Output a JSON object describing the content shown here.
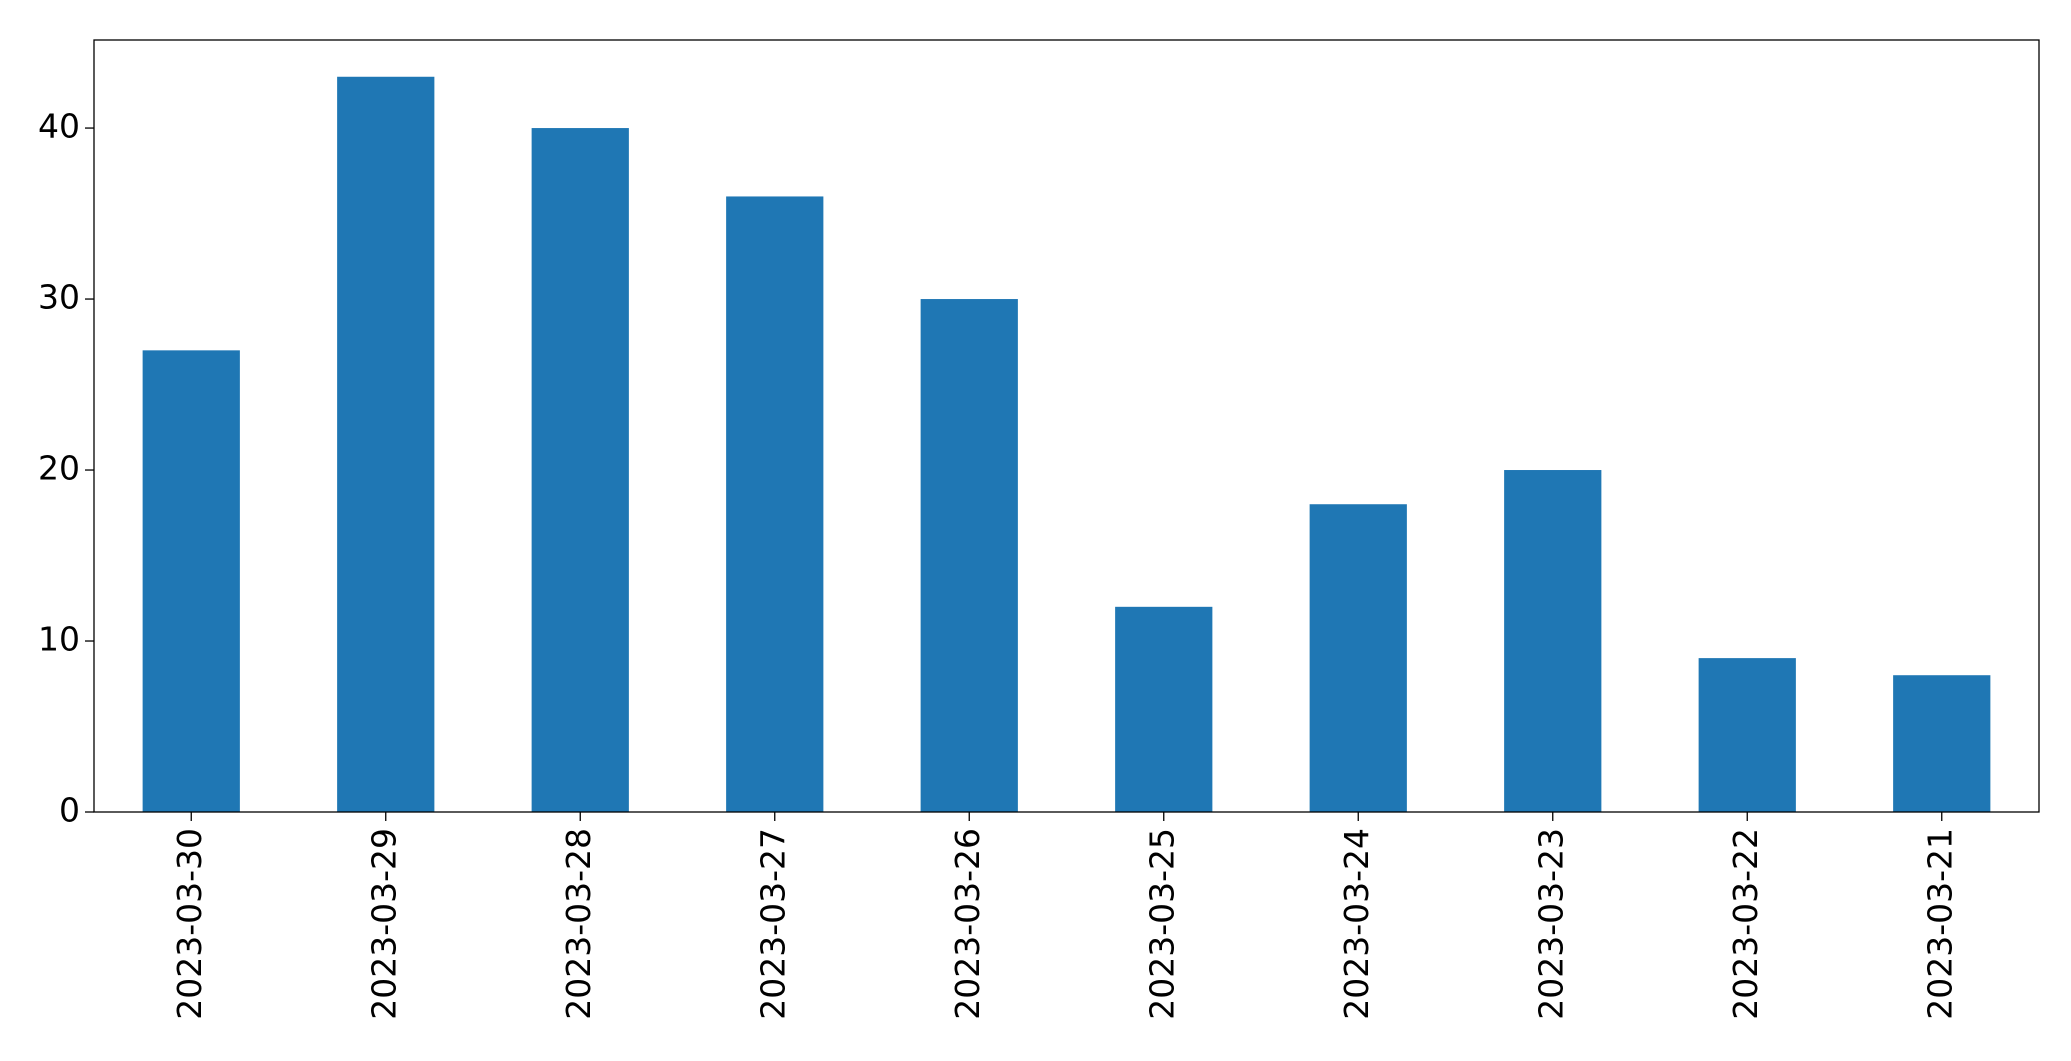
{
  "chart_data": {
    "type": "bar",
    "categories": [
      "2023-03-30",
      "2023-03-29",
      "2023-03-28",
      "2023-03-27",
      "2023-03-26",
      "2023-03-25",
      "2023-03-24",
      "2023-03-23",
      "2023-03-22",
      "2023-03-21"
    ],
    "values": [
      27,
      43,
      40,
      36,
      30,
      12,
      18,
      20,
      9,
      8
    ],
    "color": "#1f77b4",
    "ylim": [
      0,
      45.15
    ],
    "yticks": [
      0,
      10,
      20,
      30,
      40
    ],
    "grid": false
  }
}
